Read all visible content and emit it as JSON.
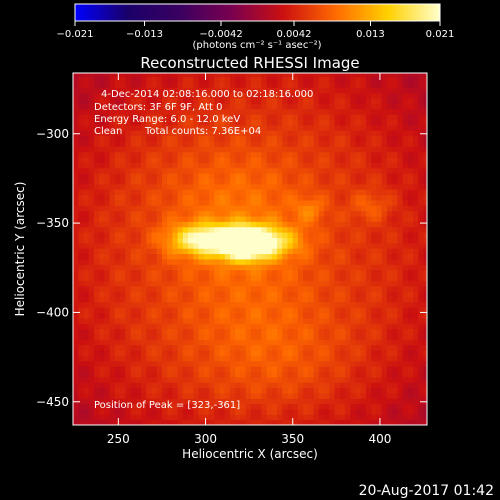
{
  "chart_data": {
    "type": "heatmap",
    "title": "Reconstructed RHESSI Image",
    "xlabel": "Heliocentric X (arcsec)",
    "ylabel": "Heliocentric Y (arcsec)",
    "xlim": [
      224,
      427
    ],
    "ylim": [
      -463,
      -266
    ],
    "x_ticks": [
      250,
      300,
      350,
      400
    ],
    "y_ticks": [
      -300,
      -350,
      -400,
      -450
    ],
    "x_tick_labels": [
      "250",
      "300",
      "350",
      "400"
    ],
    "y_tick_labels": [
      "−300",
      "−350",
      "−400",
      "−450"
    ],
    "colorbar": {
      "min": -0.021,
      "max": 0.021,
      "colormap": [
        "#0000ff",
        "#1a006a",
        "#3a0060",
        "#7a0050",
        "#cc1010",
        "#ff6a00",
        "#ffd000",
        "#ffffcc"
      ],
      "ticks": [
        -0.021,
        -0.013,
        -0.0042,
        0.0042,
        0.013,
        0.021
      ],
      "tick_labels": [
        "−0.021",
        "−0.013",
        "−0.0042",
        "0.0042",
        "0.013",
        "0.021"
      ],
      "unit_label": "(photons cm⁻² s⁻¹ asec⁻²)"
    },
    "sources": [
      {
        "x": 323,
        "y": -361,
        "intensity": 0.021,
        "sx": 10,
        "sy": 6
      },
      {
        "x": 300,
        "y": -359,
        "intensity": 0.014,
        "sx": 14,
        "sy": 6
      },
      {
        "x": 338,
        "y": -360,
        "intensity": 0.008,
        "sx": 12,
        "sy": 6
      },
      {
        "x": 318,
        "y": -340,
        "intensity": 0.0045,
        "sx": 35,
        "sy": 28
      },
      {
        "x": 325,
        "y": -395,
        "intensity": 0.003,
        "sx": 40,
        "sy": 30
      },
      {
        "x": 360,
        "y": -342,
        "intensity": 0.0035,
        "sx": 6,
        "sy": 5
      },
      {
        "x": 395,
        "y": -340,
        "intensity": 0.0032,
        "sx": 8,
        "sy": 6
      },
      {
        "x": 340,
        "y": -425,
        "intensity": 0.002,
        "sx": 30,
        "sy": 20
      }
    ],
    "background_level": 0.0045,
    "annotations": {
      "time": "4-Dec-2014 02:08:16.000 to 02:18:16.000",
      "detectors": "Detectors: 3F 6F 9F, Att 0",
      "energy": "Energy Range: 6.0 - 12.0 keV",
      "clean": "Clean",
      "counts": "Total counts: 7.36E+04",
      "peak": "Position of Peak = [323,-361]"
    }
  },
  "footer": {
    "timestamp": "20-Aug-2017 01:42"
  }
}
